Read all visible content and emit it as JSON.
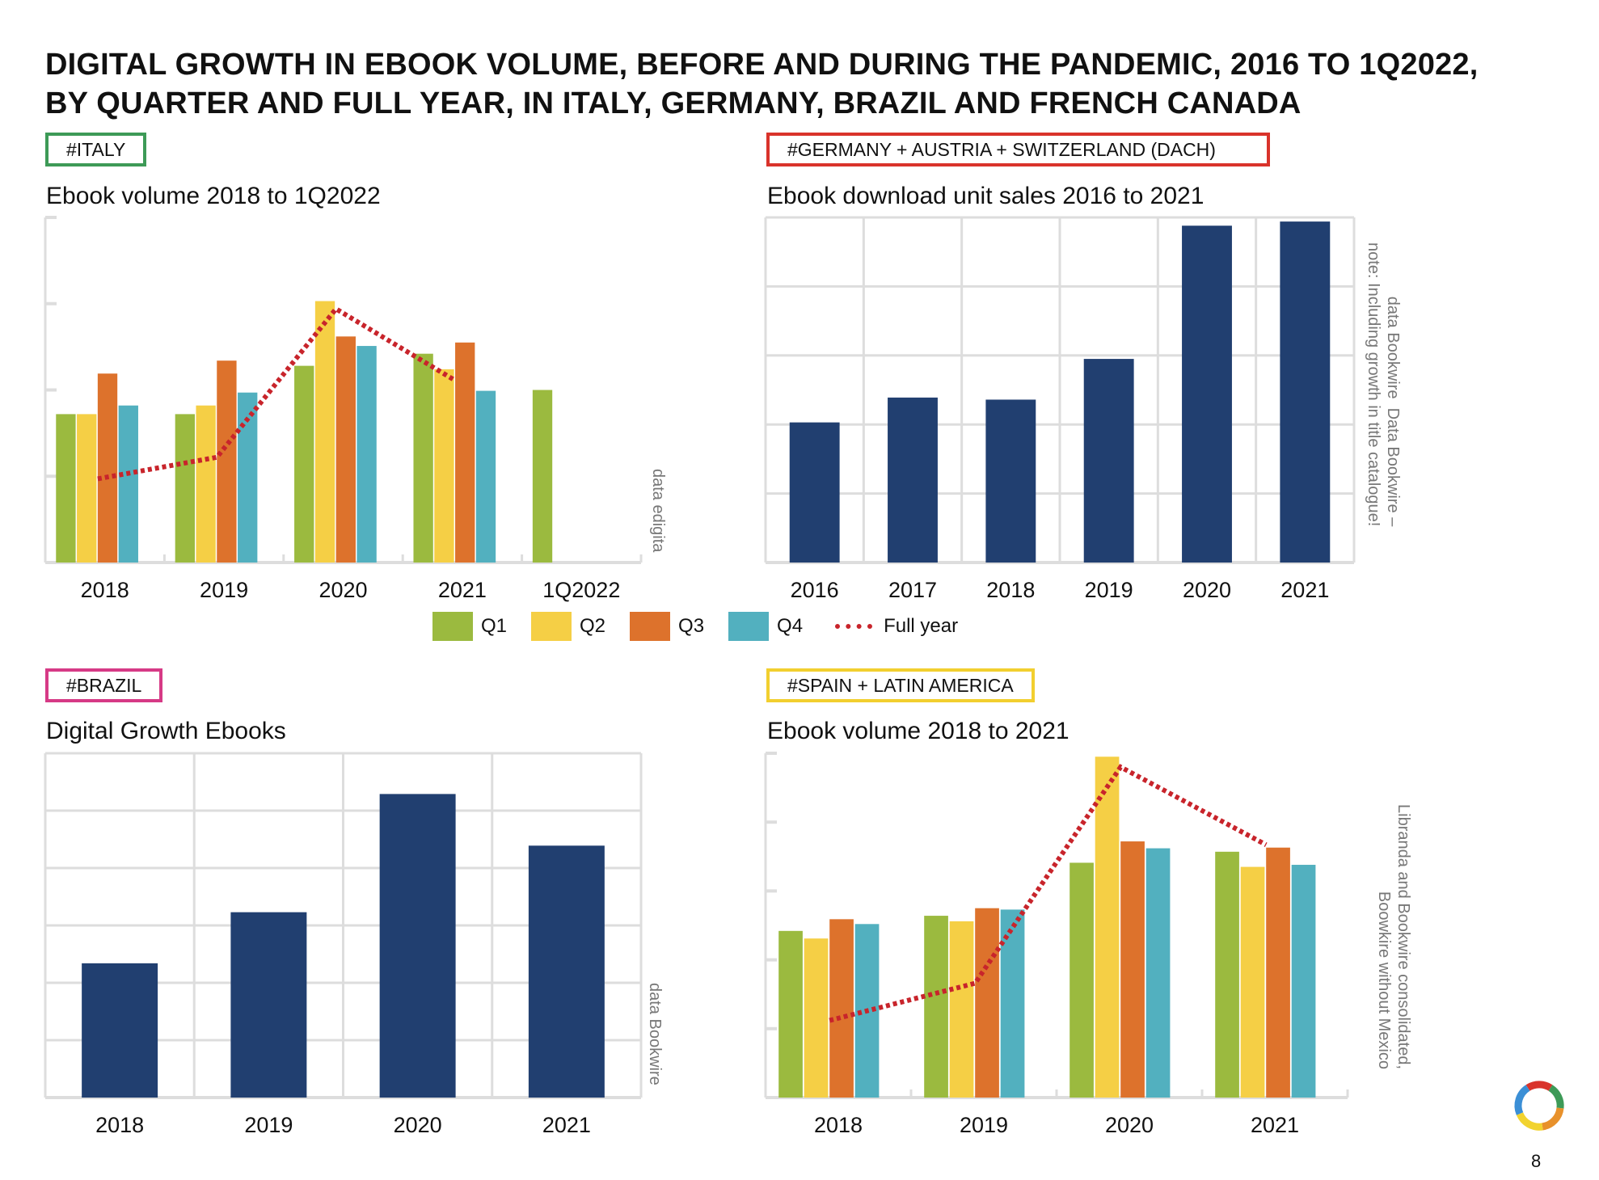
{
  "title_line1": "DIGITAL GROWTH IN EBOOK VOLUME, BEFORE AND DURING THE PANDEMIC, 2016 TO 1Q2022,",
  "title_line2": "BY QUARTER AND FULL YEAR, IN ITALY, GERMANY, BRAZIL AND FRENCH CANADA",
  "colors": {
    "q1": "#9bba3f",
    "q2": "#f5cf45",
    "q3": "#dd722c",
    "q4": "#52b0bf",
    "full_year": "#c8242b",
    "navy": "#213f70",
    "italy_tag": "#3d9a57",
    "dach_tag": "#d9332b",
    "brazil_tag": "#d63a86",
    "spain_tag": "#f2cf2f"
  },
  "legend": {
    "q1": "Q1",
    "q2": "Q2",
    "q3": "Q3",
    "q4": "Q4",
    "full_year": "Full year"
  },
  "page_number": "8",
  "logo": "ring-logo",
  "chart_data": [
    {
      "id": "italy",
      "tag": "#ITALY",
      "type": "bar",
      "title": "Ebook volume 2018 to 1Q2022",
      "source": "data edigita",
      "categories": [
        "2018",
        "2019",
        "2020",
        "2021",
        "1Q2022"
      ],
      "ylim": [
        0,
        4
      ],
      "y_unit": "relative (no axis values printed)",
      "grid": "horizontal ticks",
      "series": [
        {
          "name": "Q1",
          "values": [
            1.72,
            1.72,
            2.28,
            2.42,
            2.0
          ]
        },
        {
          "name": "Q2",
          "values": [
            1.72,
            1.82,
            3.03,
            2.24,
            null
          ]
        },
        {
          "name": "Q3",
          "values": [
            2.19,
            2.34,
            2.62,
            2.55,
            null
          ]
        },
        {
          "name": "Q4",
          "values": [
            1.82,
            1.97,
            2.51,
            1.99,
            null
          ]
        }
      ],
      "line": {
        "name": "Full year",
        "values": [
          0.97,
          1.22,
          2.94,
          2.11,
          null
        ]
      }
    },
    {
      "id": "dach",
      "tag": "#GERMANY + AUSTRIA + SWITZERLAND (DACH)",
      "type": "bar",
      "title": "Ebook download unit sales 2016 to 2021",
      "source": "data Bookwire  Data Bookwire –\nnote: Including growth in title catalogue!",
      "categories": [
        "2016",
        "2017",
        "2018",
        "2019",
        "2020",
        "2021"
      ],
      "ylim": [
        0,
        5
      ],
      "grid": "on",
      "values": [
        2.03,
        2.39,
        2.36,
        2.95,
        4.88,
        4.94
      ]
    },
    {
      "id": "brazil",
      "tag": "#BRAZIL",
      "type": "bar",
      "title": "Digital Growth Ebooks",
      "source": "data Bookwire",
      "categories": [
        "2018",
        "2019",
        "2020",
        "2021"
      ],
      "ylim": [
        0,
        6
      ],
      "grid": "on",
      "values": [
        2.34,
        3.23,
        5.29,
        4.39
      ]
    },
    {
      "id": "spain",
      "tag": "#SPAIN + LATIN AMERICA",
      "type": "bar",
      "title": "Ebook volume 2018 to 2021",
      "source": "Libranda and Bookwire consolidated,\nBoowkire without Mexico",
      "categories": [
        "2018",
        "2019",
        "2020",
        "2021"
      ],
      "ylim": [
        0,
        5
      ],
      "grid": "horizontal ticks",
      "series": [
        {
          "name": "Q1",
          "values": [
            2.42,
            2.64,
            3.41,
            3.57
          ]
        },
        {
          "name": "Q2",
          "values": [
            2.31,
            2.56,
            4.95,
            3.35
          ]
        },
        {
          "name": "Q3",
          "values": [
            2.59,
            2.75,
            3.72,
            3.63
          ]
        },
        {
          "name": "Q4",
          "values": [
            2.52,
            2.73,
            3.62,
            3.38
          ]
        }
      ],
      "line": {
        "name": "Full year",
        "values": [
          1.12,
          1.66,
          4.8,
          3.67
        ]
      }
    }
  ]
}
